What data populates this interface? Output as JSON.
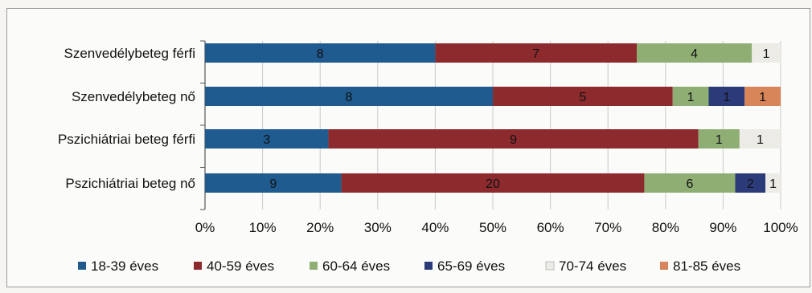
{
  "chart_data": {
    "type": "bar",
    "orientation": "horizontal",
    "stacked": "percent",
    "categories": [
      "Szenvedélybeteg férfi",
      "Szenvedélybeteg nő",
      "Pszichiátriai beteg férfi",
      "Pszichiátriai beteg nő"
    ],
    "series": [
      {
        "name": "18-39 éves",
        "color": "#1f5b8f",
        "values": [
          8,
          8,
          3,
          9
        ]
      },
      {
        "name": "40-59 éves",
        "color": "#8c2a2e",
        "values": [
          7,
          5,
          9,
          20
        ]
      },
      {
        "name": "60-64 éves",
        "color": "#8fae74",
        "values": [
          4,
          1,
          1,
          6
        ]
      },
      {
        "name": "65-69 éves",
        "color": "#2b3a78",
        "values": [
          0,
          1,
          0,
          2
        ]
      },
      {
        "name": "70-74 éves",
        "color": "#ecebe6",
        "values": [
          1,
          0,
          1,
          1
        ]
      },
      {
        "name": "81-85 éves",
        "color": "#d9855a",
        "values": [
          0,
          1,
          0,
          0
        ]
      }
    ],
    "x_ticks": [
      "0%",
      "10%",
      "20%",
      "30%",
      "40%",
      "50%",
      "60%",
      "70%",
      "80%",
      "90%",
      "100%"
    ],
    "xlim": [
      0,
      100
    ],
    "grid": true,
    "legend": "bottom"
  }
}
